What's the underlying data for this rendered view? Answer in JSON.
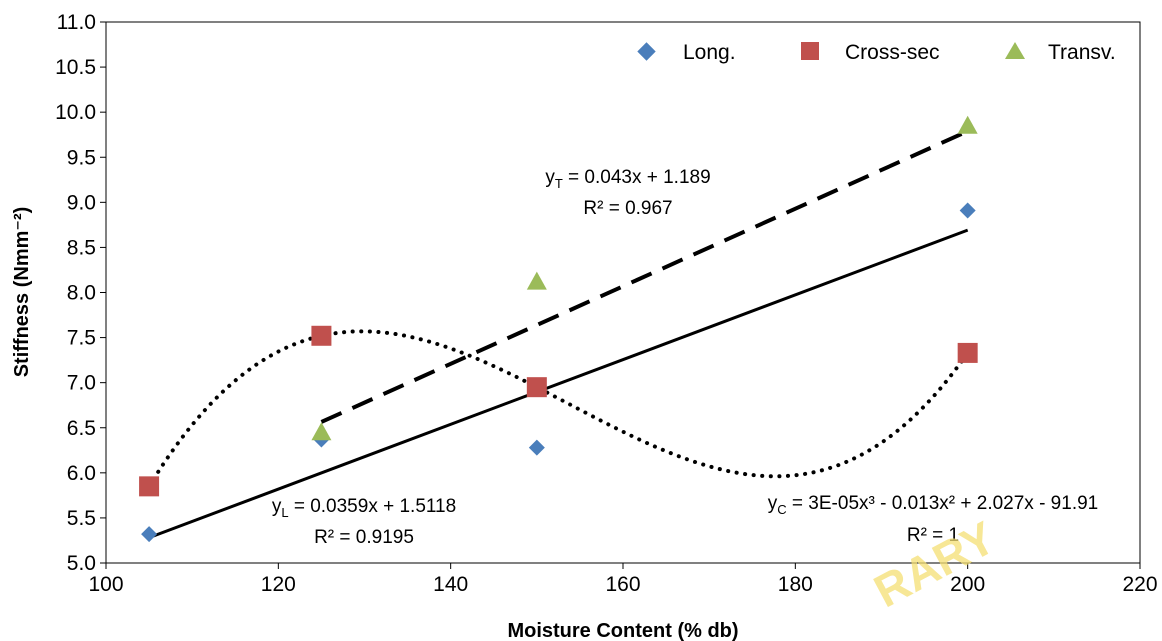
{
  "chart_data": {
    "type": "scatter",
    "xlabel": "Moisture Content (% db)",
    "ylabel": "Stiffness (Nmm⁻²)",
    "xlim": [
      100,
      220
    ],
    "ylim": [
      5.0,
      11.0
    ],
    "x_ticks": [
      "100",
      "120",
      "140",
      "160",
      "180",
      "200",
      "220"
    ],
    "y_ticks": [
      "5.0",
      "5.5",
      "6.0",
      "6.5",
      "7.0",
      "7.5",
      "8.0",
      "8.5",
      "9.0",
      "9.5",
      "10.0",
      "10.5",
      "11.0"
    ],
    "grid": false,
    "legend_position": "top-right",
    "series": [
      {
        "name": "Long.",
        "marker": "diamond",
        "color": "#4a7ebb",
        "x": [
          105,
          125,
          150,
          200
        ],
        "y": [
          5.32,
          6.37,
          6.28,
          8.91
        ],
        "trendline": {
          "kind": "linear",
          "style": "solid",
          "slope": 0.0359,
          "intercept": 1.5118,
          "label_lines": [
            "y_L = 0.0359x + 1.5118",
            "R² = 0.9195"
          ]
        }
      },
      {
        "name": "Cross-sec",
        "marker": "square",
        "color": "#c0504d",
        "x": [
          105,
          125,
          150,
          200
        ],
        "y": [
          5.85,
          7.52,
          6.95,
          7.33
        ],
        "trendline": {
          "kind": "cubic",
          "style": "dotted",
          "coefficients": [
            3e-05,
            -0.013,
            2.027,
            -91.91
          ],
          "label_lines": [
            "y_C = 3E-05x³ - 0.013x² + 2.027x - 91.91",
            "R² = 1"
          ]
        }
      },
      {
        "name": "Transv.",
        "marker": "triangle",
        "color": "#9bbb59",
        "x": [
          125,
          150,
          200
        ],
        "y": [
          6.45,
          8.12,
          9.85
        ],
        "trendline": {
          "kind": "linear",
          "style": "dashed",
          "slope": 0.043,
          "intercept": 1.189,
          "label_lines": [
            "y_T = 0.043x + 1.189",
            "R² = 0.967"
          ]
        }
      }
    ],
    "annotations": {
      "eq_T": {
        "pre": "y",
        "sub": "T",
        "post": " = 0.043x + 1.189",
        "r2": "R² = 0.967"
      },
      "eq_L": {
        "pre": "y",
        "sub": "L",
        "post": " = 0.0359x + 1.5118",
        "r2": "R² = 0.9195"
      },
      "eq_C": {
        "pre": "y",
        "sub": "C",
        "post": " = 3E-05x³ - 0.013x² + 2.027x - 91.91",
        "r2": "R² = 1"
      }
    },
    "watermark": "RARY"
  }
}
